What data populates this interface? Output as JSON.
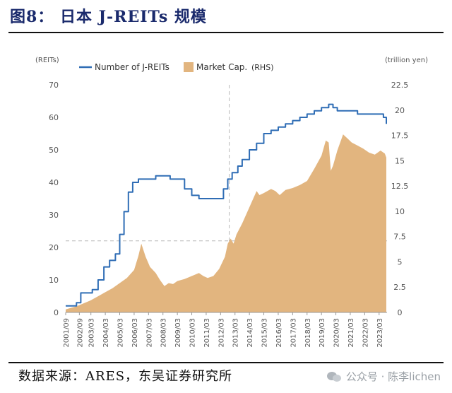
{
  "header": {
    "title": "图8： 日本 J-REITs 规模"
  },
  "footer": {
    "source": "数据来源：ARES，东吴证券研究所",
    "watermark": "公众号 · 陈李lichen"
  },
  "chart_data": {
    "type": "line+area",
    "left_unit": "(REITs)",
    "right_unit": "(trillion yen)",
    "legend": {
      "line_label": "Number of J-REITs",
      "area_label": "Market Cap.",
      "area_suffix": "(RHS)",
      "placement": "top-left"
    },
    "y_left_range": [
      0,
      70
    ],
    "y_left_ticks": [
      "0",
      "10",
      "20",
      "30",
      "40",
      "50",
      "60",
      "70"
    ],
    "y_right_range": [
      0,
      22.5
    ],
    "y_right_ticks": [
      "0",
      "2.5",
      "5",
      "7.5",
      "10",
      "12.5",
      "15",
      "17.5",
      "20",
      "22.5"
    ],
    "x_range": [
      "2001/09",
      "2024/03"
    ],
    "x_tick_labels": [
      "2001/09",
      "2002/09",
      "2003/03",
      "2004/03",
      "2005/03",
      "2006/03",
      "2007/03",
      "2008/03",
      "2009/03",
      "2010/03",
      "2011/03",
      "2012/03",
      "2013/03",
      "2014/03",
      "2015/03",
      "2016/03",
      "2017/03",
      "2018/03",
      "2019/03",
      "2020/03",
      "2021/03",
      "2022/03",
      "2023/03"
    ],
    "x_tick_positions": [
      2001.75,
      2002.7,
      2003.5,
      2004.5,
      2005.5,
      2006.5,
      2007.5,
      2008.5,
      2009.5,
      2010.5,
      2011.5,
      2012.5,
      2013.5,
      2014.5,
      2015.5,
      2016.5,
      2017.5,
      2018.5,
      2019.5,
      2020.5,
      2021.5,
      2022.5,
      2023.5
    ],
    "ref_vline_x": 2013.1,
    "ref_hline_left": 22,
    "colors": {
      "line": "#2f6db5",
      "area": "#e2b57f",
      "ref": "#b8b8b8",
      "axis_text": "#555555"
    },
    "series_count": {
      "x": [
        2001.75,
        2002.2,
        2002.5,
        2002.8,
        2003.3,
        2003.6,
        2004.0,
        2004.4,
        2004.8,
        2005.2,
        2005.5,
        2005.8,
        2006.1,
        2006.4,
        2006.8,
        2007.2,
        2007.5,
        2008.0,
        2008.5,
        2009.0,
        2009.4,
        2009.7,
        2010.0,
        2010.5,
        2011.0,
        2011.5,
        2012.0,
        2012.3,
        2012.7,
        2013.0,
        2013.3,
        2013.7,
        2014.0,
        2014.5,
        2015.0,
        2015.5,
        2016.0,
        2016.5,
        2017.0,
        2017.5,
        2018.0,
        2018.5,
        2019.0,
        2019.5,
        2020.0,
        2020.3,
        2020.6,
        2021.0,
        2021.5,
        2022.0,
        2022.5,
        2023.0,
        2023.5,
        2023.8,
        2024.0
      ],
      "y": [
        2,
        2,
        3,
        6,
        6,
        7,
        10,
        14,
        16,
        18,
        24,
        31,
        37,
        40,
        41,
        41,
        41,
        42,
        42,
        41,
        41,
        41,
        38,
        36,
        35,
        35,
        35,
        35,
        38,
        41,
        43,
        45,
        47,
        50,
        52,
        55,
        56,
        57,
        58,
        59,
        60,
        61,
        62,
        63,
        64,
        63,
        62,
        62,
        62,
        61,
        61,
        61,
        61,
        60,
        58
      ]
    },
    "series_marketcap": {
      "x": [
        2001.75,
        2002.0,
        2002.5,
        2003.0,
        2003.5,
        2004.0,
        2004.5,
        2005.0,
        2005.5,
        2006.0,
        2006.5,
        2006.8,
        2007.0,
        2007.3,
        2007.6,
        2008.0,
        2008.3,
        2008.6,
        2008.9,
        2009.2,
        2009.5,
        2010.0,
        2010.5,
        2011.0,
        2011.3,
        2011.6,
        2012.0,
        2012.4,
        2012.8,
        2013.0,
        2013.2,
        2013.4,
        2013.6,
        2014.0,
        2014.5,
        2015.0,
        2015.2,
        2015.5,
        2016.0,
        2016.3,
        2016.6,
        2017.0,
        2017.5,
        2018.0,
        2018.5,
        2019.0,
        2019.5,
        2019.8,
        2020.0,
        2020.15,
        2020.3,
        2020.6,
        2021.0,
        2021.3,
        2021.6,
        2022.0,
        2022.4,
        2022.8,
        2023.2,
        2023.6,
        2023.9,
        2024.0
      ],
      "y": [
        0.3,
        0.4,
        0.6,
        0.9,
        1.2,
        1.6,
        2.0,
        2.4,
        2.9,
        3.4,
        4.2,
        5.6,
        6.8,
        5.5,
        4.5,
        3.9,
        3.2,
        2.6,
        2.9,
        2.8,
        3.1,
        3.3,
        3.6,
        3.9,
        3.6,
        3.4,
        3.6,
        4.3,
        5.5,
        6.8,
        7.3,
        6.8,
        7.7,
        8.8,
        10.4,
        12.0,
        11.6,
        11.8,
        12.2,
        12.0,
        11.6,
        12.1,
        12.3,
        12.6,
        13.0,
        14.2,
        15.5,
        17.0,
        16.8,
        14.0,
        14.5,
        16.0,
        17.6,
        17.2,
        16.8,
        16.5,
        16.2,
        15.8,
        15.6,
        16.0,
        15.7,
        15.3
      ]
    }
  }
}
